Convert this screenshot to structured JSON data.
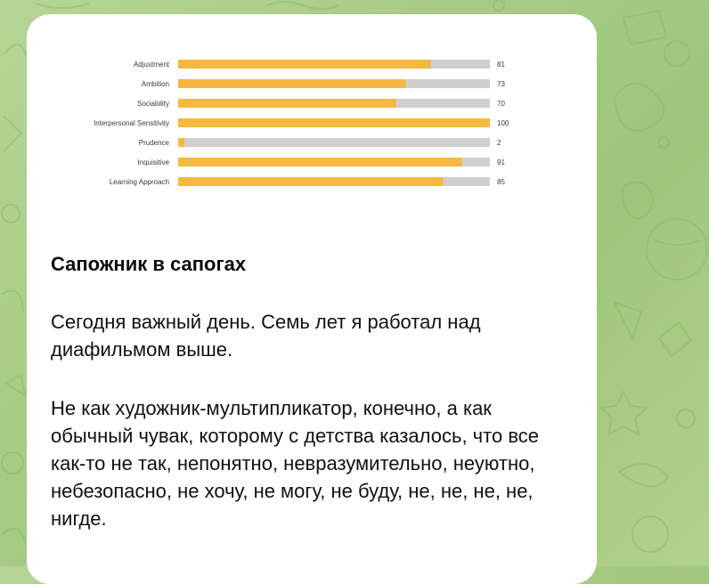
{
  "colors": {
    "bar_fill": "#f5b841",
    "bar_track": "#cfcfcf",
    "text": "#111111",
    "wallpaper": "#a7cc86"
  },
  "chart_data": {
    "type": "bar",
    "orientation": "horizontal",
    "categories": [
      "Adjustment",
      "Ambition",
      "Sociability",
      "Interpersonal Sensitivity",
      "Prudence",
      "Inquisitive",
      "Learning Approach"
    ],
    "values": [
      81,
      73,
      70,
      100,
      2,
      91,
      85
    ],
    "value_labels": [
      "81",
      "73",
      "70",
      "100",
      "2",
      "91",
      "85"
    ],
    "xlim": [
      0,
      100
    ],
    "title": "",
    "xlabel": "",
    "ylabel": "",
    "grid": false,
    "legend": "none"
  },
  "message": {
    "title": "Сапожник в сапогах",
    "paragraphs": [
      "Сегодня важный день. Семь лет я работал над диафильмом выше.",
      "Не как художник-мультипликатор, конечно, а как обычный чувак, которому с детства казалось, что все как-то не так, непонятно, невразумительно, неуютно, небезопасно, не хочу, не могу, не буду, не, не, не, не, нигде."
    ]
  }
}
